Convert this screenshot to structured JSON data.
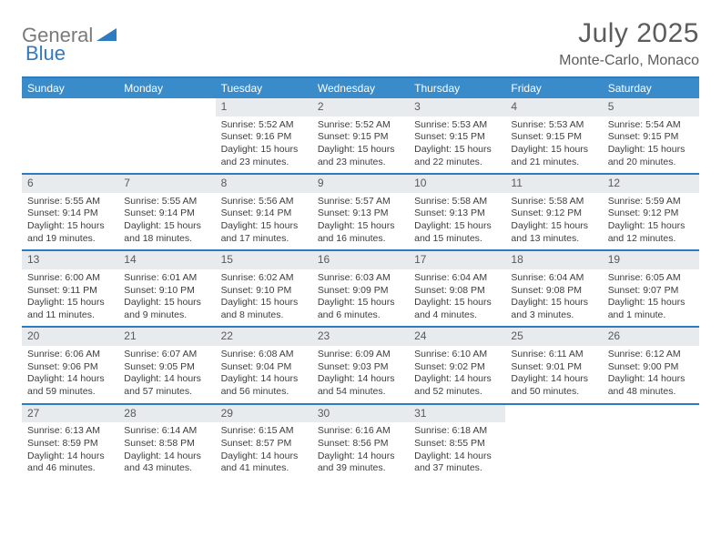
{
  "logo": {
    "gray": "General",
    "blue": "Blue"
  },
  "title": "July 2025",
  "location": "Monte-Carlo, Monaco",
  "colors": {
    "header_bg": "#3a8bc9",
    "border": "#2f7bbf",
    "daynum_bg": "#e8ebee",
    "text": "#3d3d3d",
    "title_text": "#5c5c5c"
  },
  "dow": [
    "Sunday",
    "Monday",
    "Tuesday",
    "Wednesday",
    "Thursday",
    "Friday",
    "Saturday"
  ],
  "weeks": [
    [
      {
        "n": "",
        "sr": "",
        "ss": "",
        "dl": ""
      },
      {
        "n": "",
        "sr": "",
        "ss": "",
        "dl": ""
      },
      {
        "n": "1",
        "sr": "5:52 AM",
        "ss": "9:16 PM",
        "dl": "15 hours and 23 minutes."
      },
      {
        "n": "2",
        "sr": "5:52 AM",
        "ss": "9:15 PM",
        "dl": "15 hours and 23 minutes."
      },
      {
        "n": "3",
        "sr": "5:53 AM",
        "ss": "9:15 PM",
        "dl": "15 hours and 22 minutes."
      },
      {
        "n": "4",
        "sr": "5:53 AM",
        "ss": "9:15 PM",
        "dl": "15 hours and 21 minutes."
      },
      {
        "n": "5",
        "sr": "5:54 AM",
        "ss": "9:15 PM",
        "dl": "15 hours and 20 minutes."
      }
    ],
    [
      {
        "n": "6",
        "sr": "5:55 AM",
        "ss": "9:14 PM",
        "dl": "15 hours and 19 minutes."
      },
      {
        "n": "7",
        "sr": "5:55 AM",
        "ss": "9:14 PM",
        "dl": "15 hours and 18 minutes."
      },
      {
        "n": "8",
        "sr": "5:56 AM",
        "ss": "9:14 PM",
        "dl": "15 hours and 17 minutes."
      },
      {
        "n": "9",
        "sr": "5:57 AM",
        "ss": "9:13 PM",
        "dl": "15 hours and 16 minutes."
      },
      {
        "n": "10",
        "sr": "5:58 AM",
        "ss": "9:13 PM",
        "dl": "15 hours and 15 minutes."
      },
      {
        "n": "11",
        "sr": "5:58 AM",
        "ss": "9:12 PM",
        "dl": "15 hours and 13 minutes."
      },
      {
        "n": "12",
        "sr": "5:59 AM",
        "ss": "9:12 PM",
        "dl": "15 hours and 12 minutes."
      }
    ],
    [
      {
        "n": "13",
        "sr": "6:00 AM",
        "ss": "9:11 PM",
        "dl": "15 hours and 11 minutes."
      },
      {
        "n": "14",
        "sr": "6:01 AM",
        "ss": "9:10 PM",
        "dl": "15 hours and 9 minutes."
      },
      {
        "n": "15",
        "sr": "6:02 AM",
        "ss": "9:10 PM",
        "dl": "15 hours and 8 minutes."
      },
      {
        "n": "16",
        "sr": "6:03 AM",
        "ss": "9:09 PM",
        "dl": "15 hours and 6 minutes."
      },
      {
        "n": "17",
        "sr": "6:04 AM",
        "ss": "9:08 PM",
        "dl": "15 hours and 4 minutes."
      },
      {
        "n": "18",
        "sr": "6:04 AM",
        "ss": "9:08 PM",
        "dl": "15 hours and 3 minutes."
      },
      {
        "n": "19",
        "sr": "6:05 AM",
        "ss": "9:07 PM",
        "dl": "15 hours and 1 minute."
      }
    ],
    [
      {
        "n": "20",
        "sr": "6:06 AM",
        "ss": "9:06 PM",
        "dl": "14 hours and 59 minutes."
      },
      {
        "n": "21",
        "sr": "6:07 AM",
        "ss": "9:05 PM",
        "dl": "14 hours and 57 minutes."
      },
      {
        "n": "22",
        "sr": "6:08 AM",
        "ss": "9:04 PM",
        "dl": "14 hours and 56 minutes."
      },
      {
        "n": "23",
        "sr": "6:09 AM",
        "ss": "9:03 PM",
        "dl": "14 hours and 54 minutes."
      },
      {
        "n": "24",
        "sr": "6:10 AM",
        "ss": "9:02 PM",
        "dl": "14 hours and 52 minutes."
      },
      {
        "n": "25",
        "sr": "6:11 AM",
        "ss": "9:01 PM",
        "dl": "14 hours and 50 minutes."
      },
      {
        "n": "26",
        "sr": "6:12 AM",
        "ss": "9:00 PM",
        "dl": "14 hours and 48 minutes."
      }
    ],
    [
      {
        "n": "27",
        "sr": "6:13 AM",
        "ss": "8:59 PM",
        "dl": "14 hours and 46 minutes."
      },
      {
        "n": "28",
        "sr": "6:14 AM",
        "ss": "8:58 PM",
        "dl": "14 hours and 43 minutes."
      },
      {
        "n": "29",
        "sr": "6:15 AM",
        "ss": "8:57 PM",
        "dl": "14 hours and 41 minutes."
      },
      {
        "n": "30",
        "sr": "6:16 AM",
        "ss": "8:56 PM",
        "dl": "14 hours and 39 minutes."
      },
      {
        "n": "31",
        "sr": "6:18 AM",
        "ss": "8:55 PM",
        "dl": "14 hours and 37 minutes."
      },
      {
        "n": "",
        "sr": "",
        "ss": "",
        "dl": ""
      },
      {
        "n": "",
        "sr": "",
        "ss": "",
        "dl": ""
      }
    ]
  ],
  "labels": {
    "sunrise": "Sunrise:",
    "sunset": "Sunset:",
    "daylight": "Daylight:"
  }
}
